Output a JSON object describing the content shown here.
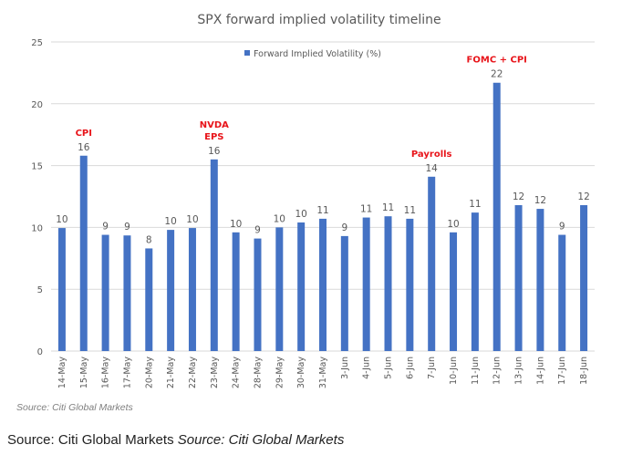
{
  "chart_data": {
    "type": "bar",
    "title": "SPX forward implied volatility timeline",
    "xlabel": "",
    "ylabel": "",
    "ylim": [
      0,
      25
    ],
    "yticks": [
      0,
      5,
      10,
      15,
      20,
      25
    ],
    "grid": true,
    "legend_position": "top-center",
    "bar_color": "#4472c4",
    "annotation_color": "#e8141a",
    "categories": [
      "14-May",
      "15-May",
      "16-May",
      "17-May",
      "20-May",
      "21-May",
      "22-May",
      "23-May",
      "24-May",
      "28-May",
      "29-May",
      "30-May",
      "31-May",
      "3-Jun",
      "4-Jun",
      "5-Jun",
      "6-Jun",
      "7-Jun",
      "10-Jun",
      "11-Jun",
      "12-Jun",
      "13-Jun",
      "14-Jun",
      "17-Jun",
      "18-Jun"
    ],
    "series": [
      {
        "name": "Forward Implied Volatility (%)",
        "values": [
          9.95,
          15.8,
          9.4,
          9.35,
          8.3,
          9.8,
          9.95,
          15.5,
          9.6,
          9.1,
          10.0,
          10.4,
          10.7,
          9.3,
          10.8,
          10.9,
          10.7,
          14.1,
          9.6,
          11.2,
          21.7,
          11.8,
          11.5,
          9.4,
          11.8
        ],
        "data_labels": [
          "10",
          "16",
          "9",
          "9",
          "8",
          "10",
          "10",
          "16",
          "10",
          "9",
          "10",
          "10",
          "11",
          "9",
          "11",
          "11",
          "11",
          "14",
          "10",
          "11",
          "22",
          "12",
          "12",
          "9",
          "12"
        ]
      }
    ],
    "annotations": [
      {
        "category": "15-May",
        "lines": [
          "CPI"
        ]
      },
      {
        "category": "23-May",
        "lines": [
          "NVDA",
          "EPS"
        ]
      },
      {
        "category": "7-Jun",
        "lines": [
          "Payrolls"
        ]
      },
      {
        "category": "12-Jun",
        "lines": [
          "FOMC + CPI"
        ]
      }
    ],
    "source_note": "Source: Citi Global Markets"
  },
  "caption": {
    "plain": "Source: Citi Global Markets",
    "italic": "Source: Citi Global Markets"
  }
}
